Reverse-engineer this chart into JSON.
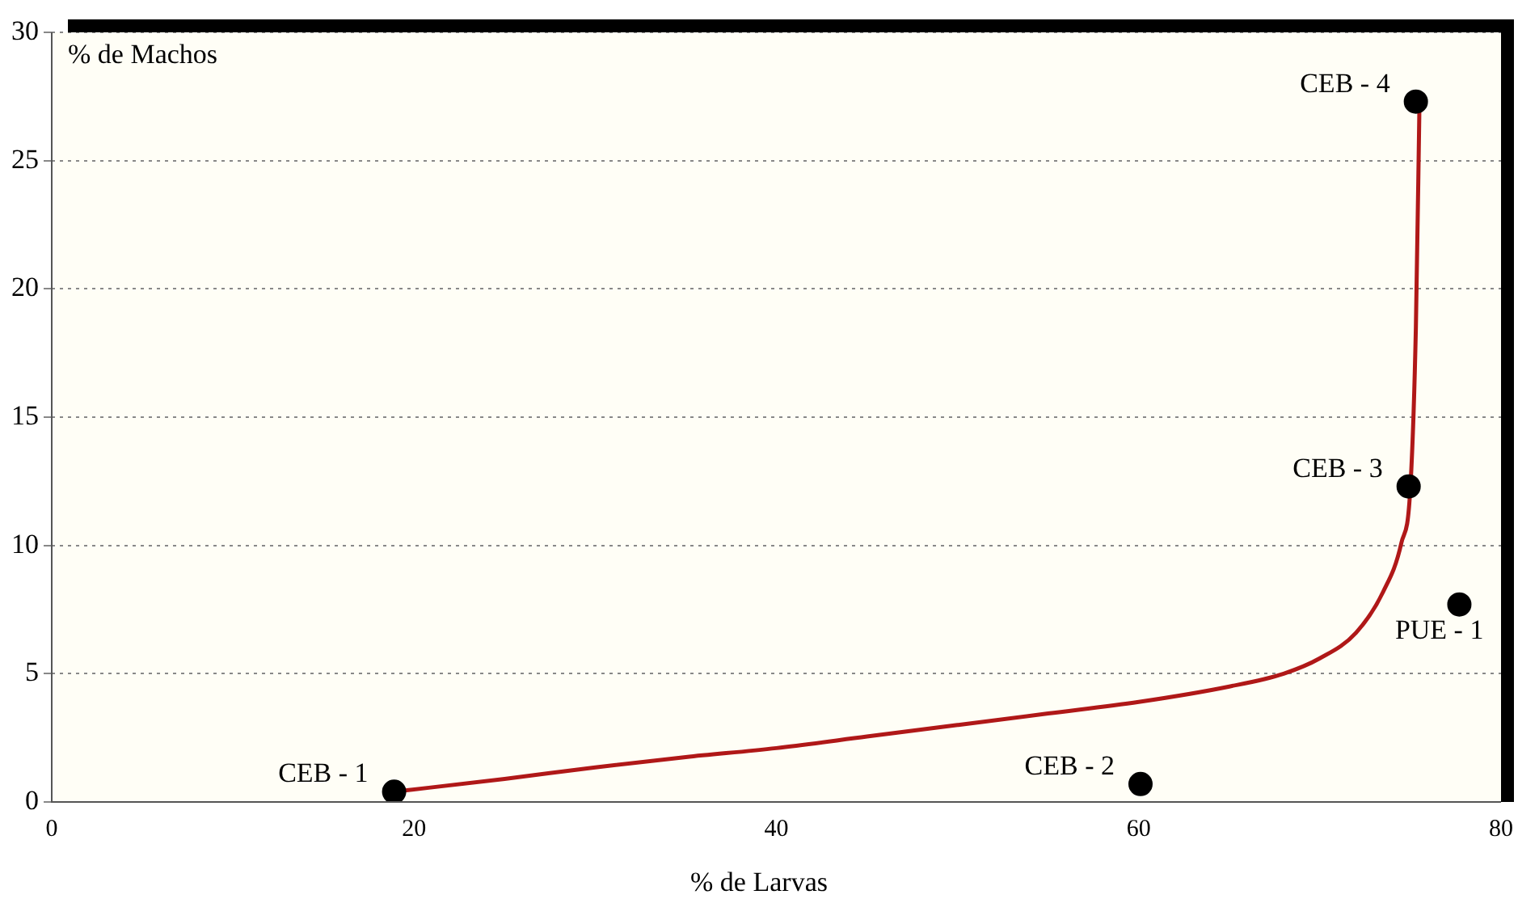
{
  "chart_data": {
    "type": "scatter",
    "xlabel": "% de Larvas",
    "ylabel": "% de Machos",
    "xlim": [
      0,
      80
    ],
    "xticks": [
      0,
      20,
      40,
      60,
      80
    ],
    "ylim": [
      0,
      30
    ],
    "yticks": [
      0,
      5,
      10,
      15,
      20,
      25,
      30
    ],
    "grid": "y",
    "legend": false,
    "series": [
      {
        "type": "line",
        "color": "#b01818",
        "marker": "none",
        "line_style": "solid",
        "x": [
          18.9,
          25,
          30,
          35,
          40,
          45,
          50,
          55,
          60,
          65,
          68,
          70,
          72,
          73.5,
          74.5,
          75,
          75.3,
          75.5
        ],
        "values": [
          0.4,
          0.9,
          1.35,
          1.75,
          2.1,
          2.55,
          3.0,
          3.45,
          3.9,
          4.5,
          5.0,
          5.6,
          6.6,
          8.2,
          10.1,
          12.3,
          18.5,
          27.3
        ]
      },
      {
        "color": "#000000",
        "marker": "circle",
        "x": [
          18.9,
          60.1,
          74.9,
          75.3,
          77.7
        ],
        "values": [
          0.4,
          0.7,
          12.3,
          27.3,
          7.7
        ]
      }
    ],
    "annotations": [
      {
        "text": "CEB - 1",
        "x": 18.9,
        "y": 0.4
      },
      {
        "text": "CEB - 2",
        "x": 60.1,
        "y": 0.7
      },
      {
        "text": "CEB - 3",
        "x": 74.9,
        "y": 12.3
      },
      {
        "text": "CEB - 4",
        "x": 75.3,
        "y": 27.3
      },
      {
        "text": "PUE - 1",
        "x": 77.7,
        "y": 7.7
      }
    ]
  }
}
